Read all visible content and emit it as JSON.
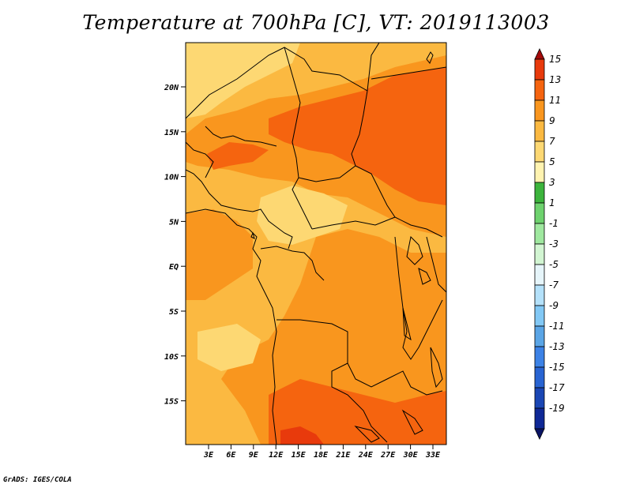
{
  "title": "Temperature at 700hPa [C], VT: 2019113003",
  "credit": "GrADS: IGES/COLA",
  "map": {
    "lat_ticks": [
      "20N",
      "15N",
      "10N",
      "5N",
      "EQ",
      "5S",
      "10S",
      "15S"
    ],
    "lon_ticks": [
      "3E",
      "6E",
      "9E",
      "12E",
      "15E",
      "18E",
      "21E",
      "24E",
      "27E",
      "30E",
      "33E"
    ]
  },
  "colorbar": {
    "labels": [
      "15",
      "13",
      "11",
      "9",
      "7",
      "5",
      "3",
      "1",
      "-1",
      "-3",
      "-5",
      "-7",
      "-9",
      "-11",
      "-13",
      "-15",
      "-17",
      "-19"
    ],
    "colors": [
      "#a50a0a",
      "#e83a0c",
      "#f5640f",
      "#f9961e",
      "#fbb941",
      "#fdd873",
      "#fff3b0",
      "#3cb43c",
      "#6ed26e",
      "#9fe89f",
      "#d2f5d2",
      "#e6f5fa",
      "#b4e1fa",
      "#82c8f5",
      "#5aa5e6",
      "#3c82e6",
      "#2864d2",
      "#1a46b4",
      "#0f2896",
      "#0a1464"
    ]
  },
  "fields": {
    "base_color": "#fbb941",
    "warm_color": "#f9961e",
    "hot_color": "#f5640f",
    "cool_color": "#fdd873",
    "hottest_color": "#e83a0c"
  }
}
